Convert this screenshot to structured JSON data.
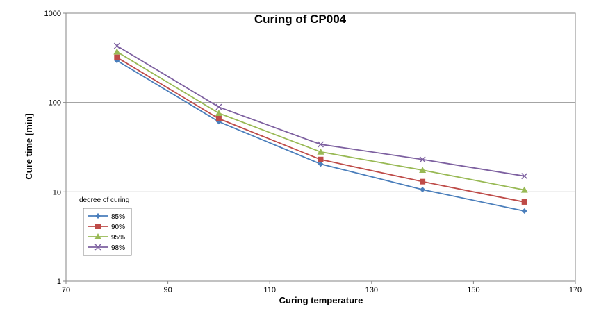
{
  "chart_data": {
    "type": "line",
    "title": "Curing of CP004",
    "xlabel": "Curing temperature",
    "ylabel": "Cure time [min]",
    "x_scale": "linear",
    "y_scale": "log",
    "xlim": [
      70,
      170
    ],
    "ylim": [
      1,
      1000
    ],
    "x_ticks": [
      "70",
      "90",
      "110",
      "130",
      "150",
      "170"
    ],
    "y_ticks": [
      "1",
      "10",
      "100",
      "1000"
    ],
    "grid": "horizontal",
    "legend_title": "degree of curing",
    "legend_position": "left",
    "x": [
      80,
      100,
      120,
      140,
      160
    ],
    "series": [
      {
        "name": "85%",
        "values": [
          295,
          61,
          20.5,
          10.6,
          6.1
        ],
        "color": "#4a7ebb",
        "marker": "diamond"
      },
      {
        "name": "90%",
        "values": [
          320,
          66,
          23,
          13,
          7.7
        ],
        "color": "#be4b48",
        "marker": "square"
      },
      {
        "name": "95%",
        "values": [
          370,
          76,
          28,
          17.5,
          10.5
        ],
        "color": "#98b954",
        "marker": "triangle"
      },
      {
        "name": "98%",
        "values": [
          430,
          89,
          34,
          23,
          15
        ],
        "color": "#7d60a0",
        "marker": "x"
      }
    ]
  }
}
